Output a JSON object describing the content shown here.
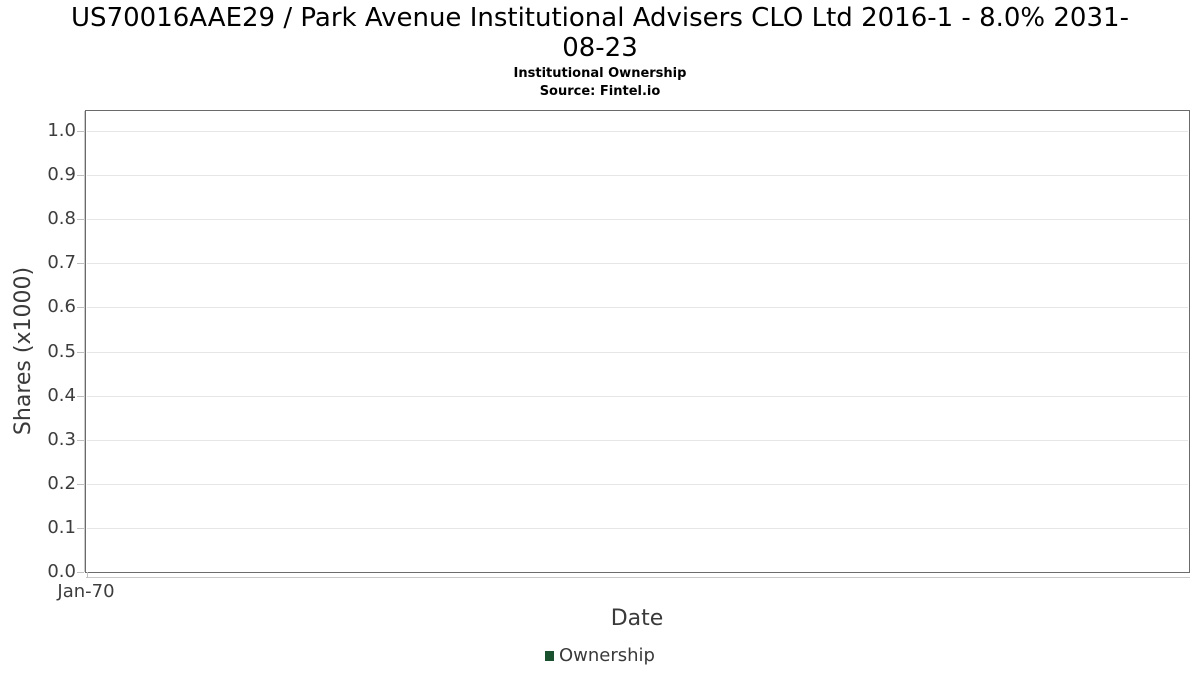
{
  "header": {
    "title_lines": [
      "US70016AAE29 / Park Avenue Institutional Advisers CLO Ltd 2016-1 - 8.0% 2031-",
      "08-23"
    ],
    "subtitle": "Institutional Ownership",
    "source": "Source: Fintel.io"
  },
  "chart_data": {
    "type": "line",
    "title": "US70016AAE29 / Park Avenue Institutional Advisers CLO Ltd 2016-1 - 8.0% 2031-08-23",
    "subtitle": "Institutional Ownership",
    "source": "Source: Fintel.io",
    "xlabel": "Date",
    "ylabel": "Shares (x1000)",
    "x_tick_labels": [
      "Jan-70"
    ],
    "x_tick_fractions": [
      0.0
    ],
    "y_ticks": [
      0.0,
      0.1,
      0.2,
      0.3,
      0.4,
      0.5,
      0.6,
      0.7,
      0.8,
      0.9,
      1.0
    ],
    "y_tick_labels": [
      "0.0",
      "0.1",
      "0.2",
      "0.3",
      "0.4",
      "0.5",
      "0.6",
      "0.7",
      "0.8",
      "0.9",
      "1.0"
    ],
    "ylim": [
      0.0,
      1.045
    ],
    "grid": true,
    "legend_position": "bottom",
    "series": [
      {
        "name": "Ownership",
        "color": "#1a5230",
        "x": [],
        "values": []
      }
    ]
  },
  "colors": {
    "background": "#ffffff",
    "title_text": "#000000",
    "plot_border": "#6b6b6b",
    "gridline": "#e6e6e6",
    "axis_line": "#c9c9c9",
    "tick_mark": "#c0c0c0",
    "tick_text": "#3d3d3d",
    "axis_title_text": "#3a3a3a",
    "legend_swatch": "#1a5230"
  }
}
